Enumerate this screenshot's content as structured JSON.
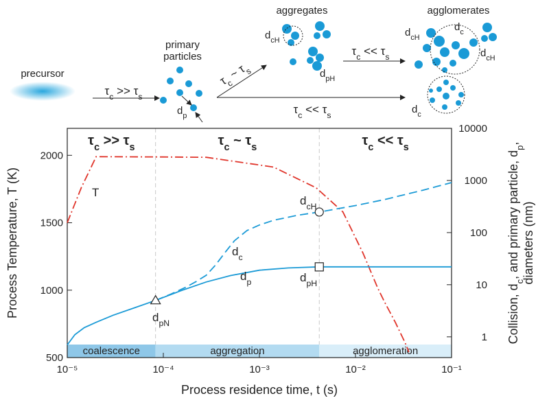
{
  "schematic": {
    "precursor": "precursor",
    "primary": [
      "primary",
      "particles"
    ],
    "aggregates": "aggregates",
    "agglomerates": "agglomerates",
    "arrows": [
      [
        {
          "t": "τ"
        },
        {
          "s": "c"
        },
        {
          "t": " >> τ"
        },
        {
          "s": "s"
        }
      ],
      [
        {
          "t": "τ"
        },
        {
          "s": "c"
        },
        {
          "t": " ~ τ"
        },
        {
          "s": "s"
        }
      ],
      [
        {
          "t": "τ"
        },
        {
          "s": "c"
        },
        {
          "t": " << τ"
        },
        {
          "s": "s"
        }
      ],
      [
        {
          "t": "τ"
        },
        {
          "s": "c"
        },
        {
          "t": " << τ"
        },
        {
          "s": "s"
        }
      ]
    ],
    "labels": [
      [
        {
          "t": "d"
        },
        {
          "s": "p"
        }
      ],
      [
        {
          "t": "d"
        },
        {
          "s": "cH"
        }
      ],
      [
        {
          "t": "d"
        },
        {
          "s": "pH"
        }
      ],
      [
        {
          "t": "d"
        },
        {
          "s": "cH"
        }
      ],
      [
        {
          "t": "d"
        },
        {
          "s": "c"
        }
      ],
      [
        {
          "t": "d"
        },
        {
          "s": "cH"
        }
      ],
      [
        {
          "t": "d"
        },
        {
          "s": "c"
        }
      ]
    ]
  },
  "chart_data": {
    "type": "line",
    "xlabel": "Process residence time, t (s)",
    "ylabel": "Process Temperature, T (K)",
    "ylabel_color": "#e0342a",
    "y2label": [
      [
        {
          "t": "Collision, d"
        },
        {
          "s": "c"
        },
        {
          "t": ", and primary particle, d"
        },
        {
          "s": "p"
        },
        {
          "t": ","
        }
      ],
      [
        {
          "t": "diameters (nm)"
        }
      ]
    ],
    "y2label_color": "#1a9ad6",
    "xscale": "log",
    "y2scale": "log",
    "xlim": [
      1e-05,
      0.1
    ],
    "xticks": [
      {
        "value": 1e-05,
        "label": "10⁻⁵"
      },
      {
        "value": 0.0001,
        "label": "10⁻⁴"
      },
      {
        "value": 0.001,
        "label": "10⁻³"
      },
      {
        "value": 0.01,
        "label": "10⁻²"
      },
      {
        "value": 0.1,
        "label": "10⁻¹"
      }
    ],
    "ylim": [
      500,
      2200
    ],
    "yticks": [
      500,
      1000,
      1500,
      2000
    ],
    "y2lim": [
      0.4,
      10000
    ],
    "y2ticks": [
      1,
      10,
      100,
      1000,
      10000
    ],
    "series": [
      {
        "color": "#e0342a",
        "style": "dashdot",
        "x": [
          1e-05,
          1.4e-05,
          2e-05,
          0.0001,
          0.00028,
          0.0014,
          0.0039,
          0.0074,
          0.012,
          0.017,
          0.02,
          0.026,
          0.033,
          0.036
        ],
        "values": [
          1500,
          1760,
          1990,
          1988,
          1985,
          1913,
          1759,
          1580,
          1273,
          1017,
          915,
          761,
          607,
          540
        ]
      },
      {
        "color": "#1a9ad6",
        "style": "solid",
        "axis": "y2",
        "x": [
          1e-05,
          1.2e-05,
          1.5e-05,
          2e-05,
          3e-05,
          5e-05,
          8.3e-05,
          0.00015,
          0.00028,
          0.0005,
          0.001,
          0.002,
          0.0042,
          0.01,
          0.1
        ],
        "values": [
          0.7,
          1.1,
          1.5,
          1.9,
          2.6,
          3.6,
          5,
          7.6,
          11.3,
          15,
          19,
          21,
          22,
          22,
          22
        ]
      },
      {
        "color": "#1a9ad6",
        "style": "dashed",
        "axis": "y2",
        "x": [
          8.3e-05,
          0.00012,
          0.00017,
          0.00022,
          0.00028,
          0.00035,
          0.00045,
          0.00055,
          0.00074,
          0.001,
          0.0014,
          0.0025,
          0.0042,
          0.01,
          0.02,
          0.05,
          0.1
        ],
        "values": [
          5,
          6.6,
          8.9,
          11.5,
          15.2,
          24,
          44,
          70,
          109,
          140,
          172,
          215,
          248,
          330,
          430,
          650,
          912
        ]
      }
    ],
    "markers": [
      {
        "shape": "triangle",
        "x": 8.3e-05,
        "value": 5
      },
      {
        "shape": "circle",
        "x": 0.0042,
        "value": 248
      },
      {
        "shape": "square",
        "x": 0.0042,
        "value": 22
      }
    ],
    "regions": [
      {
        "label": "coalescence",
        "start": 1e-05,
        "end": 8.3e-05,
        "color": "#8ec7e8"
      },
      {
        "label": "aggregation",
        "start": 8.3e-05,
        "end": 0.0042,
        "color": "#b3dbf1"
      },
      {
        "label": "agglomeration",
        "start": 0.0042,
        "end": 0.1,
        "color": "#d9eef9"
      }
    ],
    "headers": [
      [
        {
          "t": "τ"
        },
        {
          "s": "c"
        },
        {
          "t": " >> τ"
        },
        {
          "s": "s"
        }
      ],
      [
        {
          "t": "τ"
        },
        {
          "s": "c"
        },
        {
          "t": " ~ τ"
        },
        {
          "s": "s"
        }
      ],
      [
        {
          "t": "τ"
        },
        {
          "s": "c"
        },
        {
          "t": " << τ"
        },
        {
          "s": "s"
        }
      ]
    ],
    "annotations": [
      {
        "parts": [
          {
            "t": "T"
          }
        ],
        "color": "#e0342a"
      },
      {
        "parts": [
          {
            "t": "d"
          },
          {
            "s": "c"
          }
        ],
        "color": "#1a9ad6"
      },
      {
        "parts": [
          {
            "t": "d"
          },
          {
            "s": "p"
          }
        ],
        "color": "#1a9ad6"
      },
      {
        "parts": [
          {
            "t": "d"
          },
          {
            "s": "pN"
          }
        ],
        "color": "#1a9ad6"
      },
      {
        "parts": [
          {
            "t": "d"
          },
          {
            "s": "cH"
          }
        ],
        "color": "#1a9ad6"
      },
      {
        "parts": [
          {
            "t": "d"
          },
          {
            "s": "pH"
          }
        ],
        "color": "#1a9ad6"
      }
    ]
  }
}
